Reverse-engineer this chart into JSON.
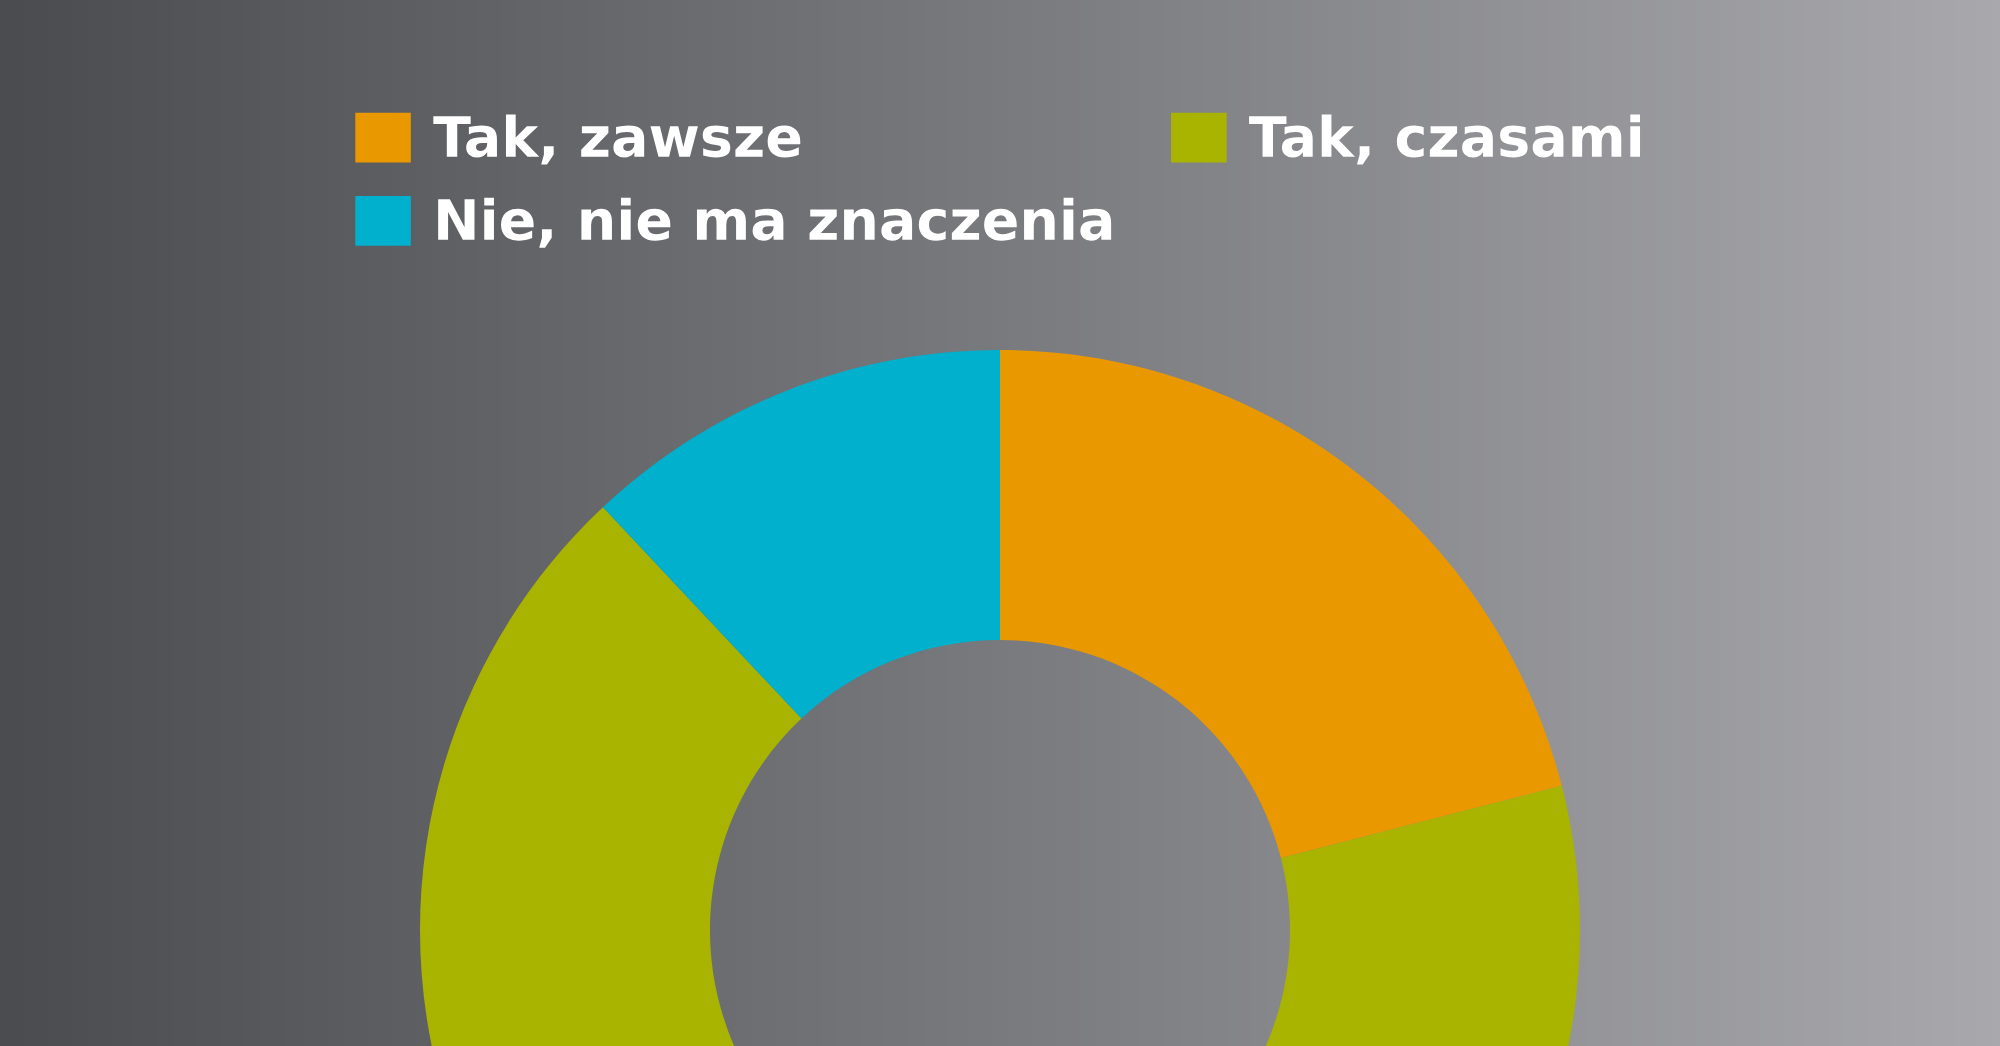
{
  "chart_data": {
    "type": "donut",
    "categories": [
      "Tak, zawsze",
      "Tak, czasami",
      "Nie, nie ma znaczenia"
    ],
    "values": [
      21,
      67,
      12
    ],
    "colors": [
      "#ea9800",
      "#a8b400",
      "#00b0cc"
    ],
    "legend": "top"
  }
}
